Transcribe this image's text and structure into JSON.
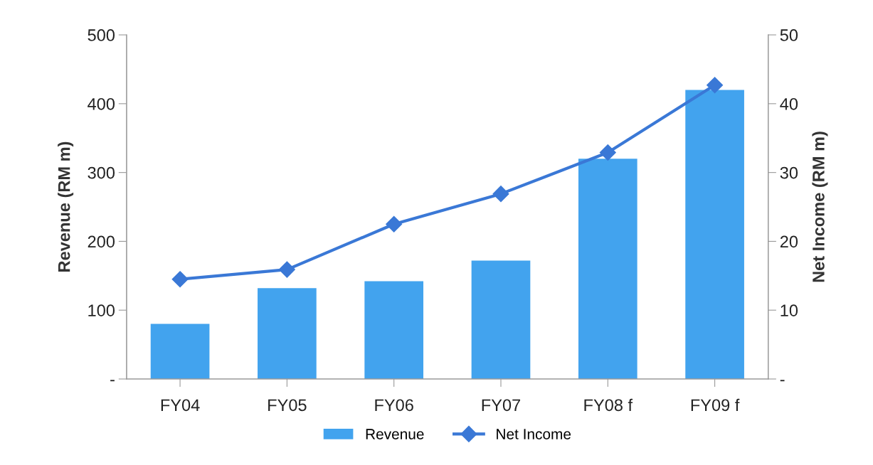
{
  "chart_data": {
    "type": "bar",
    "categories": [
      "FY04",
      "FY05",
      "FY06",
      "FY07",
      "FY08 f",
      "FY09 f"
    ],
    "ylabel": "Revenue (RM m)",
    "y2label": "Net Income (RM m)",
    "series": [
      {
        "name": "Revenue",
        "color": "#42a3ee",
        "values": [
          80,
          132,
          142,
          172,
          320,
          420
        ]
      },
      {
        "name": "Net Income",
        "type": "line",
        "axis": "y2",
        "color": "#3a78d6",
        "marker": "diamond",
        "values": [
          14.5,
          15.9,
          22.5,
          26.9,
          32.9,
          42.7
        ]
      }
    ],
    "ylim": [
      0,
      500
    ],
    "yticks": [
      {
        "value": 0,
        "label": "-"
      },
      100,
      200,
      300,
      400,
      500
    ],
    "y2lim": [
      0,
      50
    ],
    "y2ticks": [
      {
        "value": 0,
        "label": "-"
      },
      10,
      20,
      30,
      40,
      50
    ],
    "grid": false,
    "legend": "bottom"
  }
}
